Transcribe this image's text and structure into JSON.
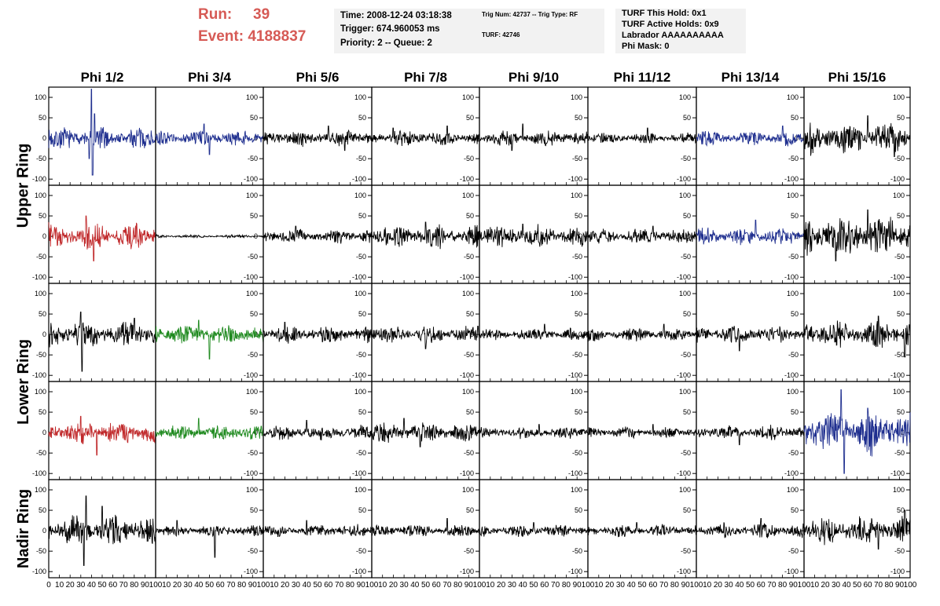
{
  "header": {
    "run_label": "Run:",
    "run_value": "39",
    "event_label": "Event:",
    "event_value": "4188837",
    "time_text": "Time: 2008-12-24 03:18:38",
    "trigger_text": "Trigger: 674.960053 ms",
    "priority_text": "Priority: 2 -- Queue: 2",
    "trig_num_text": "Trig Num: 42737 -- Trig Type: RF",
    "turf_text": "TURF: 42746",
    "turf_hold_text": "TURF This Hold: 0x1",
    "turf_active_text": "TURF Active Holds: 0x9",
    "labrador_text": "Labrador AAAAAAAAAA",
    "phi_mask_text": "Phi Mask: 0"
  },
  "colors": {
    "accent_text": "#d65a55",
    "panel_bg": "#f2f2f2",
    "trace_black": "#000000",
    "trace_blue": "#1f2f8f",
    "trace_red": "#c0282a",
    "trace_green": "#1f8a1f"
  },
  "chart_data": {
    "type": "line",
    "columns": [
      "Phi 1/2",
      "Phi 3/4",
      "Phi 5/6",
      "Phi 7/8",
      "Phi 9/10",
      "Phi 11/12",
      "Phi 13/14",
      "Phi 15/16"
    ],
    "rows": [
      "Upper Ring",
      "Upper Ring",
      "Lower Ring",
      "Lower Ring",
      "Nadir Ring"
    ],
    "ring_labels": [
      {
        "label": "Upper Ring",
        "rows": [
          0,
          1
        ]
      },
      {
        "label": "Lower Ring",
        "rows": [
          2,
          3
        ]
      },
      {
        "label": "Nadir Ring",
        "rows": [
          4
        ]
      }
    ],
    "xlim": [
      0,
      100
    ],
    "ylim": [
      -115,
      125
    ],
    "x_ticks": [
      0,
      10,
      20,
      30,
      40,
      50,
      60,
      70,
      80,
      90,
      100
    ],
    "y_ticks": [
      -100,
      -50,
      0,
      50,
      100
    ],
    "legend": "none",
    "grid": false,
    "panels": [
      [
        {
          "color": "blue",
          "amp": 22,
          "spikes": [
            [
              40,
              120
            ],
            [
              41,
              -90
            ],
            [
              43,
              60
            ],
            [
              38,
              -50
            ]
          ]
        },
        {
          "color": "blue",
          "amp": 14,
          "spikes": [
            [
              45,
              35
            ],
            [
              50,
              -40
            ]
          ]
        },
        {
          "color": "black",
          "amp": 15,
          "spikes": [
            [
              60,
              30
            ],
            [
              75,
              -30
            ]
          ]
        },
        {
          "color": "black",
          "amp": 14,
          "spikes": [
            [
              20,
              25
            ],
            [
              70,
              30
            ]
          ]
        },
        {
          "color": "black",
          "amp": 14,
          "spikes": [
            [
              40,
              35
            ],
            [
              30,
              -30
            ]
          ]
        },
        {
          "color": "black",
          "amp": 10,
          "spikes": [
            [
              55,
              25
            ]
          ]
        },
        {
          "color": "blue",
          "amp": 14,
          "spikes": [
            [
              80,
              30
            ]
          ]
        },
        {
          "color": "black",
          "amp": 30,
          "spikes": [
            [
              60,
              55
            ],
            [
              85,
              -45
            ]
          ]
        }
      ],
      [
        {
          "color": "red",
          "amp": 24,
          "spikes": [
            [
              35,
              50
            ],
            [
              42,
              -60
            ]
          ]
        },
        {
          "color": "black",
          "amp": 3,
          "spikes": []
        },
        {
          "color": "black",
          "amp": 14,
          "spikes": [
            [
              30,
              25
            ]
          ]
        },
        {
          "color": "black",
          "amp": 22,
          "spikes": [
            [
              50,
              35
            ]
          ]
        },
        {
          "color": "black",
          "amp": 20,
          "spikes": [
            [
              40,
              30
            ]
          ]
        },
        {
          "color": "black",
          "amp": 14,
          "spikes": [
            [
              60,
              25
            ]
          ]
        },
        {
          "color": "blue",
          "amp": 16,
          "spikes": [
            [
              55,
              40
            ]
          ]
        },
        {
          "color": "black",
          "amp": 40,
          "spikes": [
            [
              60,
              65
            ],
            [
              30,
              -60
            ]
          ]
        }
      ],
      [
        {
          "color": "black",
          "amp": 25,
          "spikes": [
            [
              30,
              55
            ],
            [
              31,
              -90
            ],
            [
              80,
              40
            ]
          ]
        },
        {
          "color": "green",
          "amp": 18,
          "spikes": [
            [
              50,
              -60
            ],
            [
              40,
              35
            ]
          ]
        },
        {
          "color": "black",
          "amp": 16,
          "spikes": [
            [
              20,
              30
            ]
          ]
        },
        {
          "color": "black",
          "amp": 16,
          "spikes": [
            [
              50,
              -35
            ]
          ]
        },
        {
          "color": "black",
          "amp": 11,
          "spikes": [
            [
              60,
              25
            ]
          ]
        },
        {
          "color": "black",
          "amp": 12,
          "spikes": [
            [
              70,
              25
            ]
          ]
        },
        {
          "color": "black",
          "amp": 16,
          "spikes": [
            [
              40,
              -40
            ]
          ]
        },
        {
          "color": "black",
          "amp": 25,
          "spikes": [
            [
              70,
              45
            ],
            [
              95,
              -55
            ]
          ]
        }
      ],
      [
        {
          "color": "red",
          "amp": 22,
          "spikes": [
            [
              30,
              40
            ],
            [
              45,
              -55
            ]
          ]
        },
        {
          "color": "green",
          "amp": 15,
          "spikes": [
            [
              40,
              35
            ]
          ]
        },
        {
          "color": "black",
          "amp": 13,
          "spikes": [
            [
              40,
              30
            ]
          ]
        },
        {
          "color": "black",
          "amp": 18,
          "spikes": [
            [
              30,
              35
            ],
            [
              45,
              -35
            ]
          ]
        },
        {
          "color": "black",
          "amp": 11,
          "spikes": [
            [
              55,
              20
            ]
          ]
        },
        {
          "color": "black",
          "amp": 10,
          "spikes": [
            [
              60,
              20
            ]
          ]
        },
        {
          "color": "black",
          "amp": 13,
          "spikes": [
            [
              40,
              -30
            ]
          ]
        },
        {
          "color": "blue",
          "amp": 40,
          "spikes": [
            [
              35,
              105
            ],
            [
              38,
              -100
            ],
            [
              60,
              60
            ]
          ]
        }
      ],
      [
        {
          "color": "black",
          "amp": 30,
          "spikes": [
            [
              35,
              85
            ],
            [
              33,
              -85
            ],
            [
              50,
              60
            ]
          ]
        },
        {
          "color": "black",
          "amp": 10,
          "spikes": [
            [
              55,
              -65
            ],
            [
              20,
              25
            ]
          ]
        },
        {
          "color": "black",
          "amp": 12,
          "spikes": [
            [
              40,
              25
            ]
          ]
        },
        {
          "color": "black",
          "amp": 12,
          "spikes": [
            [
              70,
              30
            ]
          ]
        },
        {
          "color": "black",
          "amp": 11,
          "spikes": [
            [
              50,
              20
            ]
          ]
        },
        {
          "color": "black",
          "amp": 11,
          "spikes": [
            [
              45,
              20
            ]
          ]
        },
        {
          "color": "black",
          "amp": 14,
          "spikes": [
            [
              60,
              30
            ]
          ]
        },
        {
          "color": "black",
          "amp": 26,
          "spikes": [
            [
              95,
              50
            ],
            [
              70,
              -45
            ]
          ]
        }
      ]
    ]
  }
}
